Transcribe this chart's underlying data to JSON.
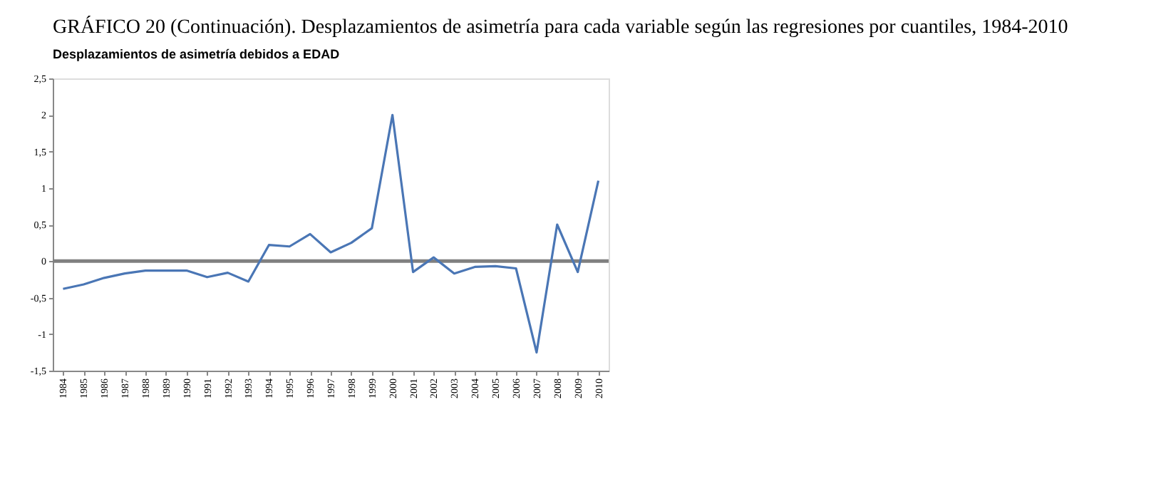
{
  "chart_data": {
    "type": "line",
    "title": "GRÁFICO 20 (Continuación). Desplazamientos de asimetría para cada variable según las regresiones por cuantiles, 1984-2010",
    "subtitle": "Desplazamientos de asimetría debidos a EDAD",
    "categories": [
      "1984",
      "1985",
      "1986",
      "1987",
      "1988",
      "1989",
      "1990",
      "1991",
      "1992",
      "1993",
      "1994",
      "1995",
      "1996",
      "1997",
      "1998",
      "1999",
      "2000",
      "2001",
      "2002",
      "2003",
      "2004",
      "2005",
      "2006",
      "2007",
      "2008",
      "2009",
      "2010"
    ],
    "series": [
      {
        "color": "#4a76b5",
        "values": [
          -0.38,
          -0.32,
          -0.23,
          -0.17,
          -0.13,
          -0.13,
          -0.13,
          -0.22,
          -0.16,
          -0.28,
          0.22,
          0.2,
          0.37,
          0.12,
          0.25,
          0.45,
          2.0,
          -0.15,
          0.05,
          -0.17,
          -0.08,
          -0.07,
          -0.1,
          -1.25,
          0.5,
          -0.15,
          1.1
        ]
      }
    ],
    "ylim": [
      -1.5,
      2.5
    ],
    "yticks": [
      {
        "value": -1.5,
        "label": "-1,5"
      },
      -1,
      {
        "value": -0.5,
        "label": "-0,5"
      },
      0,
      {
        "value": 0.5,
        "label": "0,5"
      },
      1,
      {
        "value": 1.5,
        "label": "1,5"
      },
      2,
      {
        "value": 2.5,
        "label": "2,5"
      }
    ],
    "ref_lines": [
      {
        "axis": "y",
        "value": 0,
        "color": "#808080"
      }
    ],
    "grid": false,
    "marker": "none",
    "line_style": "solid"
  }
}
